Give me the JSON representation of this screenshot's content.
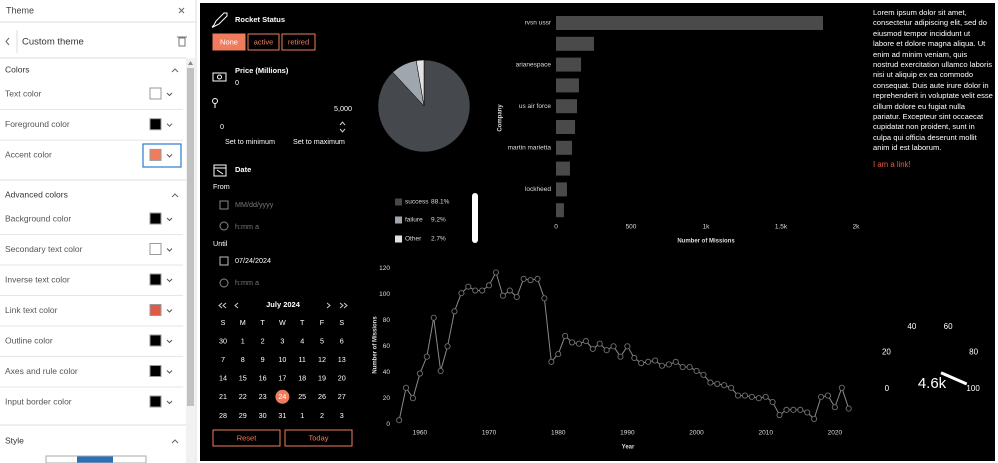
{
  "sidebar": {
    "title": "Theme",
    "theme_name": "Custom theme",
    "sections": [
      {
        "title": "Colors",
        "items": [
          {
            "label": "Text color",
            "color": "#ffffff"
          },
          {
            "label": "Foreground color",
            "color": "#000000"
          },
          {
            "label": "Accent color",
            "color": "#f07c5e"
          }
        ]
      },
      {
        "title": "Advanced colors",
        "items": [
          {
            "label": "Background color",
            "color": "#000000"
          },
          {
            "label": "Secondary text color",
            "color": "#ffffff"
          },
          {
            "label": "Inverse text color",
            "color": "#000000"
          },
          {
            "label": "Link text color",
            "color": "#e05a48"
          },
          {
            "label": "Outline color",
            "color": "#000000"
          },
          {
            "label": "Axes and rule color",
            "color": "#000000"
          },
          {
            "label": "Input border color",
            "color": "#000000"
          }
        ]
      },
      {
        "title": "Style"
      }
    ]
  },
  "dashboard": {
    "filter": {
      "title": "Rocket Status",
      "options": [
        "None",
        "active",
        "retired"
      ],
      "selected": 0
    },
    "price": {
      "title": "Price (Millions)",
      "value": "0",
      "slider_min": "0",
      "slider_max": "5,000",
      "buttons": [
        "Set to minimum",
        "Set to maximum"
      ]
    },
    "date": {
      "title": "Date",
      "from_label": "From",
      "from_date": "MM/dd/yyyy",
      "from_time": "h:mm a",
      "until_label": "Until",
      "until_date": "07/24/2024",
      "until_time": "h:mm a"
    },
    "calendar": {
      "month": "July 2024",
      "weekdays": [
        "S",
        "M",
        "T",
        "W",
        "T",
        "F",
        "S"
      ],
      "days": [
        [
          30,
          1,
          2,
          3,
          4,
          5,
          6
        ],
        [
          7,
          8,
          9,
          10,
          11,
          12,
          13
        ],
        [
          14,
          15,
          16,
          17,
          18,
          19,
          20
        ],
        [
          21,
          22,
          23,
          24,
          25,
          26,
          27
        ],
        [
          28,
          29,
          30,
          31,
          1,
          2,
          3
        ]
      ],
      "selected": 24
    },
    "buttons": [
      "Reset",
      "Today"
    ],
    "text": "Lorem ipsum dolor sit amet, consectetur adipiscing elit, sed do eiusmod tempor incididunt ut labore et dolore magna aliqua. Ut enim ad minim veniam, quis nostrud exercitation ullamco laboris nisi ut aliquip ex ea commodo consequat. Duis aute irure dolor in reprehenderit in voluptate velit esse cillum dolore eu fugiat nulla pariatur. Excepteur sint occaecat cupidatat non proident, sunt in culpa qui officia deserunt mollit anim id est laborum.",
    "link": "I am a link!"
  },
  "chart_data": [
    {
      "type": "pie",
      "categories": [
        "success",
        "failure",
        "Other"
      ],
      "values": [
        88.1,
        9.2,
        2.7
      ],
      "value_labels": [
        "88.1%",
        "9.2%",
        "2.7%"
      ],
      "colors": [
        "#45484d",
        "#a0a6ae",
        "#e2e2e2"
      ]
    },
    {
      "type": "bar",
      "orientation": "horizontal",
      "categories": [
        "rvsn ussr",
        null,
        "arianespace",
        null,
        "us air force",
        null,
        "martin marietta",
        null,
        "lockheed",
        null
      ],
      "values": [
        1780,
        253,
        167,
        153,
        140,
        127,
        107,
        93,
        73,
        53
      ],
      "color": "#4a4a4a",
      "xlim": [
        0,
        2000
      ],
      "xticks": [
        0,
        500,
        {
          "value": 1000,
          "label": "1k"
        },
        {
          "value": 1500,
          "label": "1.5k"
        },
        {
          "value": 2000,
          "label": "2k"
        }
      ],
      "x_label": "Number of Missions",
      "y_label": "Company"
    },
    {
      "type": "line",
      "x": [
        1957,
        1958,
        1959,
        1960,
        1961,
        1962,
        1963,
        1964,
        1965,
        1966,
        1967,
        1968,
        1969,
        1970,
        1971,
        1972,
        1973,
        1974,
        1975,
        1976,
        1977,
        1978,
        1979,
        1980,
        1981,
        1982,
        1983,
        1984,
        1985,
        1986,
        1987,
        1988,
        1989,
        1990,
        1991,
        1992,
        1993,
        1994,
        1995,
        1996,
        1997,
        1998,
        1999,
        2000,
        2001,
        2002,
        2003,
        2004,
        2005,
        2006,
        2007,
        2008,
        2009,
        2010,
        2011,
        2012,
        2013,
        2014,
        2015,
        2016,
        2017,
        2018,
        2019,
        2020,
        2021,
        2022
      ],
      "values": [
        3,
        28,
        20,
        39,
        52,
        82,
        41,
        60,
        87,
        101,
        106,
        103,
        103,
        107,
        117,
        99,
        103,
        98,
        112,
        111,
        112,
        97,
        48,
        54,
        68,
        63,
        62,
        64,
        58,
        62,
        57,
        60,
        52,
        60,
        51,
        47,
        48,
        49,
        45,
        46,
        48,
        44,
        44,
        41,
        38,
        32,
        31,
        30,
        28,
        22,
        22,
        21,
        20,
        21,
        17,
        7,
        11,
        11,
        11,
        9,
        4,
        21,
        22,
        13,
        28,
        12
      ],
      "color": "#8a8a8a",
      "xlim": [
        1956.4,
        2023.2
      ],
      "xticks": [
        1960,
        1970,
        1980,
        1990,
        2000,
        2010,
        2020
      ],
      "ylim": [
        -3,
        125
      ],
      "yticks": [
        0,
        20,
        40,
        60,
        80,
        100,
        120
      ],
      "x_label": "Year",
      "y_label": "Number of Missions"
    },
    {
      "type": "gauge",
      "value": 4600,
      "value_label": "4.6k",
      "range": [
        0,
        100
      ],
      "ticks": [
        0,
        20,
        40,
        60,
        80,
        100
      ]
    }
  ]
}
